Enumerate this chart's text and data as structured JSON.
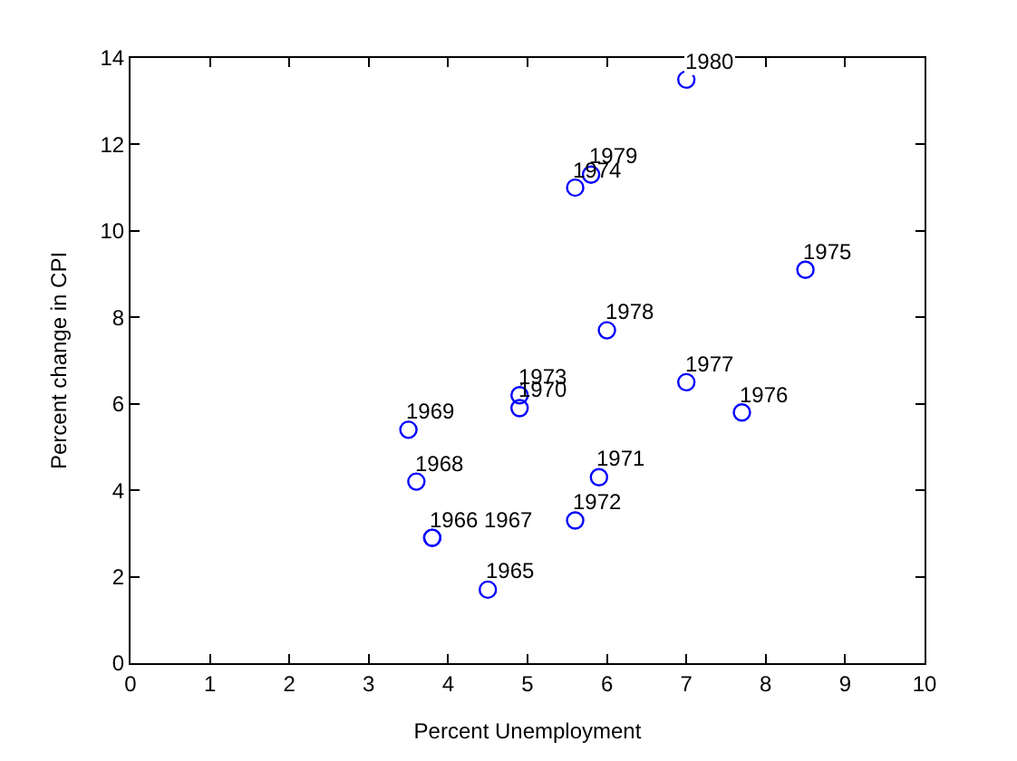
{
  "chart_data": {
    "type": "scatter",
    "xlabel": "Percent Unemployment",
    "ylabel": "Percent change in CPI",
    "x": [
      4.5,
      3.8,
      3.8,
      3.6,
      3.5,
      4.9,
      5.9,
      5.6,
      4.9,
      5.6,
      8.5,
      7.7,
      7.0,
      6.0,
      5.8,
      7.0
    ],
    "series": [
      {
        "color": "#0000ff",
        "values": [
          1.7,
          2.9,
          2.9,
          4.2,
          5.4,
          5.9,
          4.3,
          3.3,
          6.2,
          11.0,
          9.1,
          5.8,
          6.5,
          7.7,
          11.3,
          13.5
        ]
      }
    ],
    "marker": "circle",
    "xlim": [
      0,
      10
    ],
    "xticks": [
      0,
      1,
      2,
      3,
      4,
      5,
      6,
      7,
      8,
      9,
      10
    ],
    "ylim": [
      0,
      14
    ],
    "yticks": [
      0,
      2,
      4,
      6,
      8,
      10,
      12,
      14
    ],
    "annotations": [
      {
        "text": "1965",
        "x": 4.5,
        "y": 1.7
      },
      {
        "text": "1966",
        "x": 3.8,
        "y": 2.9
      },
      {
        "text": "1967",
        "x": 3.8,
        "y": 2.9
      },
      {
        "text": "1968",
        "x": 3.6,
        "y": 4.2
      },
      {
        "text": "1969",
        "x": 3.5,
        "y": 5.4
      },
      {
        "text": "1970",
        "x": 4.9,
        "y": 5.9
      },
      {
        "text": "1971",
        "x": 5.9,
        "y": 4.3
      },
      {
        "text": "1972",
        "x": 5.6,
        "y": 3.3
      },
      {
        "text": "1973",
        "x": 4.9,
        "y": 6.2
      },
      {
        "text": "1974",
        "x": 5.6,
        "y": 11.0
      },
      {
        "text": "1975",
        "x": 8.5,
        "y": 9.1
      },
      {
        "text": "1976",
        "x": 7.7,
        "y": 5.8
      },
      {
        "text": "1977",
        "x": 7.0,
        "y": 6.5
      },
      {
        "text": "1978",
        "x": 6.0,
        "y": 7.7
      },
      {
        "text": "1979",
        "x": 5.8,
        "y": 11.3
      },
      {
        "text": "1980",
        "x": 7.0,
        "y": 13.5
      }
    ]
  }
}
